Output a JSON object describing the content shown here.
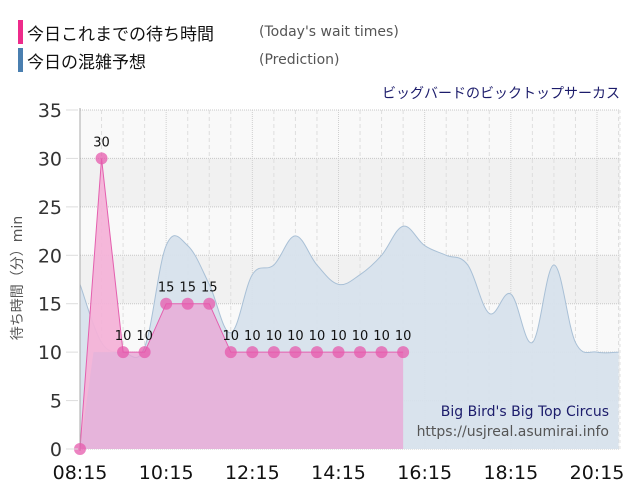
{
  "legend": {
    "items": [
      {
        "label_jp": "今日これまでの待ち時間",
        "label_en": "(Today's wait times)",
        "color": "#ee2b8b"
      },
      {
        "label_jp": "今日の混雑予想",
        "label_en": "(Prediction)",
        "color": "#4a7fb0"
      }
    ]
  },
  "attraction": {
    "name_jp": "ビッグバードのビックトップサーカス",
    "name_en": "Big Bird's Big Top Circus"
  },
  "watermark": "https://usjreal.asumirai.info",
  "colors": {
    "today_fill": "#e9a6d6",
    "today_line": "#e45fae",
    "today_point": "#e55aac",
    "peak_fill": "#f8b7d9",
    "prediction_fill": "#d7e2ec",
    "prediction_line": "#a9c0d6",
    "band_light": "#f9f9f9",
    "band_dark": "#f1f1f1"
  },
  "chart_data": {
    "type": "area",
    "title": "ビッグバードのビックトップサーカス",
    "xlabel": "",
    "ylabel": "待ち時間（分）min",
    "ylim": [
      0,
      35
    ],
    "yticks": [
      0,
      5,
      10,
      15,
      20,
      25,
      30,
      35
    ],
    "xticks": [
      "08:15",
      "10:15",
      "12:15",
      "14:15",
      "16:15",
      "18:15",
      "20:15"
    ],
    "grid": true,
    "legend_position": "top-left",
    "series": [
      {
        "name": "今日これまでの待ち時間 (Today's wait times)",
        "x": [
          "08:15",
          "08:45",
          "09:15",
          "09:45",
          "10:15",
          "10:45",
          "11:15",
          "11:45",
          "12:15",
          "12:45",
          "13:15",
          "13:45",
          "14:15",
          "14:45",
          "15:15",
          "15:45"
        ],
        "values": [
          0,
          30,
          10,
          10,
          15,
          15,
          15,
          10,
          10,
          10,
          10,
          10,
          10,
          10,
          10,
          10
        ],
        "data_labels": [
          "",
          "30",
          "10",
          "10",
          "15",
          "15",
          "15",
          "10",
          "10",
          "10",
          "10",
          "10",
          "10",
          "10",
          "10",
          "10"
        ]
      },
      {
        "name": "今日の混雑予想 (Prediction)",
        "x": [
          "08:15",
          "08:45",
          "09:15",
          "09:45",
          "10:15",
          "10:45",
          "11:15",
          "11:45",
          "12:15",
          "12:45",
          "13:15",
          "13:45",
          "14:15",
          "14:45",
          "15:15",
          "15:45",
          "16:15",
          "16:45",
          "17:15",
          "17:45",
          "18:15",
          "18:45",
          "19:15",
          "19:45",
          "20:15",
          "20:45"
        ],
        "values": [
          17,
          11,
          10,
          10.5,
          21,
          21,
          17,
          12,
          18,
          19,
          22,
          19,
          17,
          18,
          20,
          23,
          21,
          20,
          19,
          14,
          16,
          11,
          19,
          11,
          10,
          10
        ]
      }
    ]
  }
}
